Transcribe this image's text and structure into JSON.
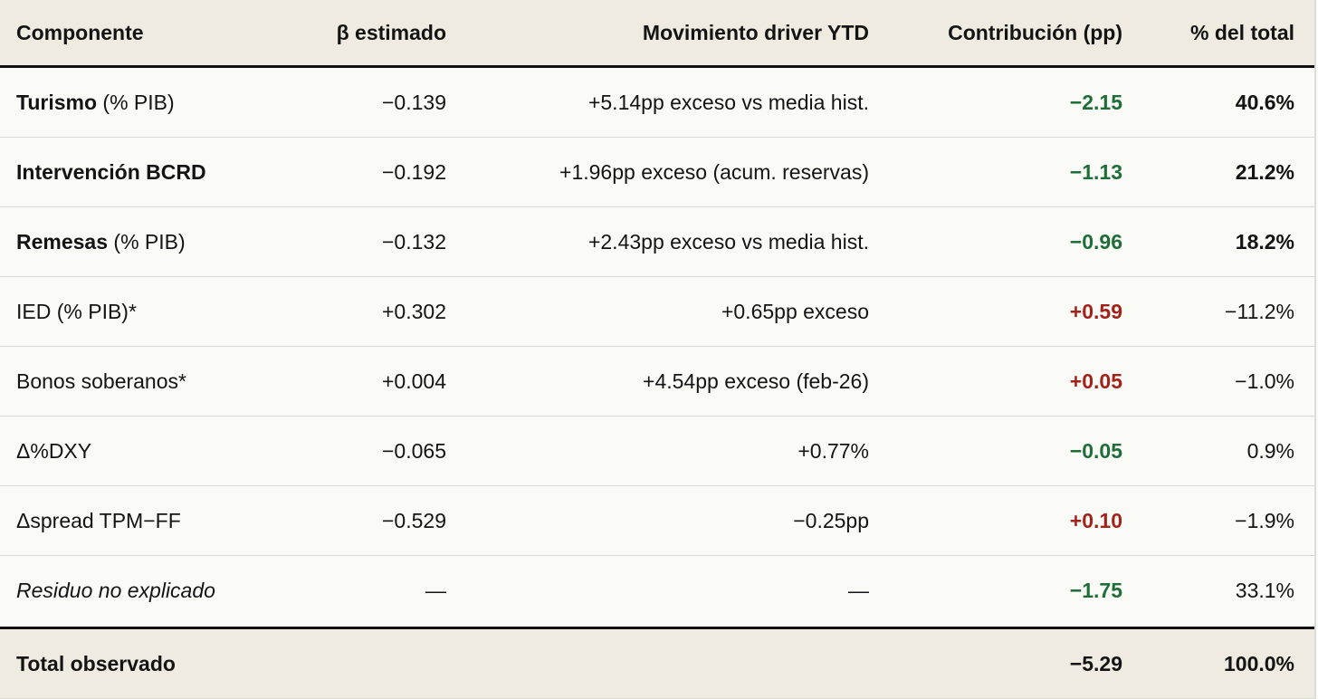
{
  "headers": {
    "componente": "Componente",
    "beta": "β estimado",
    "movimiento": "Movimiento driver YTD",
    "contribucion": "Contribución (pp)",
    "pct_total": "% del total"
  },
  "rows": [
    {
      "label": "Turismo",
      "suffix": " (% PIB)",
      "beta": "−0.139",
      "movimiento": "+5.14pp exceso vs media hist.",
      "contribucion": "−2.15",
      "pct_total": "40.6%"
    },
    {
      "label": "Intervención BCRD",
      "suffix": "",
      "beta": "−0.192",
      "movimiento": "+1.96pp exceso (acum. reservas)",
      "contribucion": "−1.13",
      "pct_total": "21.2%"
    },
    {
      "label": "Remesas",
      "suffix": " (% PIB)",
      "beta": "−0.132",
      "movimiento": "+2.43pp exceso vs media hist.",
      "contribucion": "−0.96",
      "pct_total": "18.2%"
    },
    {
      "label": "IED (% PIB)*",
      "beta": "+0.302",
      "movimiento": "+0.65pp exceso",
      "contribucion": "+0.59",
      "pct_total": "−11.2%"
    },
    {
      "label": "Bonos soberanos*",
      "beta": "+0.004",
      "movimiento": "+4.54pp exceso (feb-26)",
      "contribucion": "+0.05",
      "pct_total": "−1.0%"
    },
    {
      "label": "Δ%DXY",
      "beta": "−0.065",
      "movimiento": "+0.77%",
      "contribucion": "−0.05",
      "pct_total": "0.9%"
    },
    {
      "label": "Δspread TPM−FF",
      "beta": "−0.529",
      "movimiento": "−0.25pp",
      "contribucion": "+0.10",
      "pct_total": "−1.9%"
    },
    {
      "label": "Residuo no explicado",
      "beta": "—",
      "movimiento": "—",
      "contribucion": "−1.75",
      "pct_total": "33.1%"
    }
  ],
  "total": {
    "label": "Total observado",
    "contribucion": "−5.29",
    "pct_total": "100.0%"
  },
  "colors": {
    "negative_contribution": "#1f6e3a",
    "positive_contribution": "#a3231b",
    "header_background": "#efebe0"
  }
}
